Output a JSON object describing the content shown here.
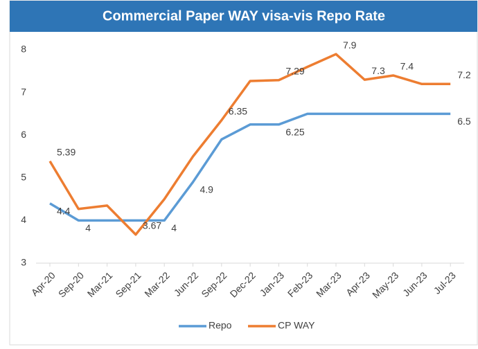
{
  "chart_data": {
    "type": "line",
    "title": "Commercial Paper WAY visa-vis Repo Rate",
    "categories": [
      "Apr-20",
      "Sep-20",
      "Mar-21",
      "Sep-21",
      "Mar-22",
      "Jun-22",
      "Sep-22",
      "Dec-22",
      "Jan-23",
      "Feb-23",
      "Mar-23",
      "Apr-23",
      "May-23",
      "Jun-23",
      "Jul-23"
    ],
    "series": [
      {
        "name": "Repo",
        "color": "#5b9bd5",
        "values": [
          4.4,
          4,
          4,
          4,
          4,
          4.9,
          5.9,
          6.25,
          6.25,
          6.5,
          6.5,
          6.5,
          6.5,
          6.5,
          6.5
        ],
        "labeled": [
          0,
          1,
          4,
          5,
          8,
          14
        ]
      },
      {
        "name": "CP WAY",
        "color": "#ed7d31",
        "values": [
          5.39,
          4.27,
          4.35,
          3.67,
          4.5,
          5.5,
          6.35,
          7.27,
          7.29,
          7.6,
          7.9,
          7.3,
          7.4,
          7.2,
          7.2
        ],
        "labeled": [
          0,
          3,
          6,
          8,
          10,
          11,
          12,
          14
        ]
      }
    ],
    "ylim": [
      3,
      8
    ],
    "yticks": [
      3,
      4,
      5,
      6,
      7,
      8
    ],
    "grid": false,
    "legend": "bottom"
  }
}
